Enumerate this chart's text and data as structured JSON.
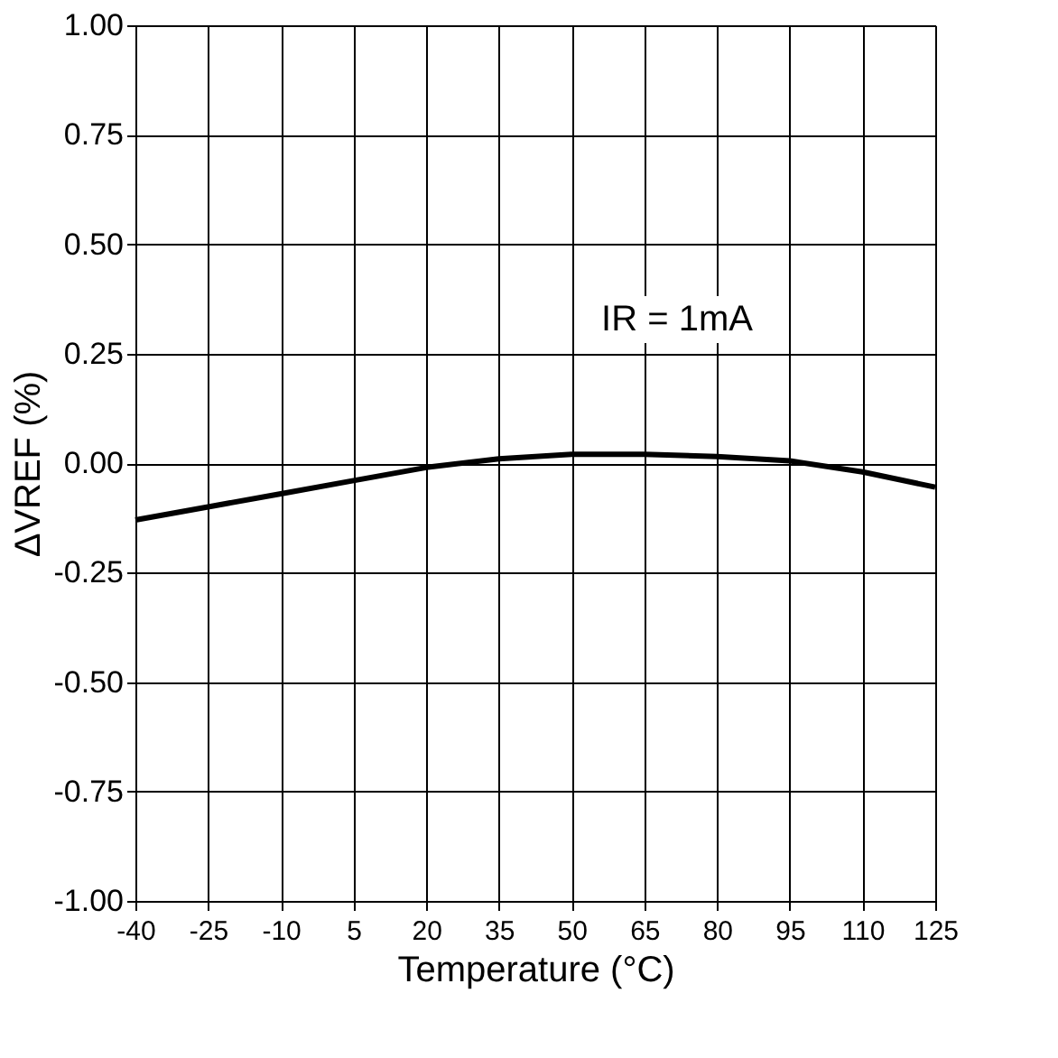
{
  "chart_data": {
    "type": "line",
    "xlabel": "Temperature (°C)",
    "ylabel": "ΔVREF (%)",
    "x": [
      -40,
      -25,
      -10,
      5,
      20,
      35,
      50,
      65,
      80,
      95,
      110,
      125
    ],
    "series": [
      {
        "color": "#000000",
        "values": [
          -0.13,
          -0.1,
          -0.07,
          -0.04,
          -0.01,
          0.01,
          0.02,
          0.02,
          0.015,
          0.005,
          -0.02,
          -0.055
        ]
      }
    ],
    "xlim": [
      -40,
      125
    ],
    "xticks": [
      -40,
      -25,
      -10,
      5,
      20,
      35,
      50,
      65,
      80,
      95,
      110,
      125
    ],
    "ylim": [
      -1,
      1
    ],
    "yticks": [
      {
        "value": -1,
        "label": "-1.00"
      },
      {
        "value": -0.75,
        "label": "-0.75"
      },
      {
        "value": -0.5,
        "label": "-0.50"
      },
      {
        "value": -0.25,
        "label": "-0.25"
      },
      {
        "value": 0,
        "label": "0.00"
      },
      {
        "value": 0.25,
        "label": "0.25"
      },
      {
        "value": 0.5,
        "label": "0.50"
      },
      {
        "value": 0.75,
        "label": "0.75"
      },
      {
        "value": 1,
        "label": "1.00"
      }
    ],
    "annotations": [
      "IR = 1mA"
    ],
    "grid": true,
    "marker": "none",
    "line_style": "solid"
  }
}
